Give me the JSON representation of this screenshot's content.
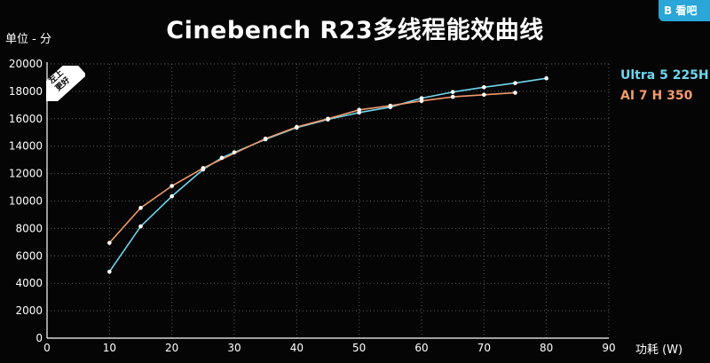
{
  "title": "Cinebench R23多线程能效曲线",
  "y_unit": "单位 - 分",
  "x_unit": "功耗 (W)",
  "badge": [
    "左上",
    "更好"
  ],
  "logo_text": "B 看吧",
  "colors": {
    "background": "#050505",
    "series_ultra": "#6fd6ef",
    "series_ai": "#f39a6b",
    "axis": "#ffffff",
    "grid": "#5a5a5a"
  },
  "chart_data": {
    "type": "line",
    "title": "Cinebench R23多线程能效曲线",
    "xlabel": "功耗 (W)",
    "ylabel": "单位 - 分",
    "xlim": [
      0,
      90
    ],
    "ylim": [
      0,
      20000
    ],
    "x_ticks": [
      "0",
      "10",
      "20",
      "30",
      "40",
      "50",
      "60",
      "70",
      "80",
      "90"
    ],
    "y_ticks": [
      "0",
      "2000",
      "4000",
      "6000",
      "8000",
      "10000",
      "12000",
      "14000",
      "16000",
      "18000",
      "20000"
    ],
    "grid": true,
    "legend_position": "right",
    "series": [
      {
        "name": "Ultra 5 225H",
        "color": "#6fd6ef",
        "x": [
          10,
          15,
          20,
          25,
          28,
          30,
          35,
          40,
          45,
          50,
          55,
          60,
          65,
          70,
          75,
          80
        ],
        "y": [
          4850,
          8150,
          10350,
          12300,
          13150,
          13550,
          14500,
          15350,
          15950,
          16450,
          16850,
          17500,
          17950,
          18300,
          18600,
          18950
        ]
      },
      {
        "name": "AI 7 H 350",
        "color": "#f39a6b",
        "x": [
          10,
          15,
          20,
          25,
          35,
          40,
          45,
          50,
          55,
          60,
          65,
          70,
          75
        ],
        "y": [
          6950,
          9500,
          11100,
          12400,
          14550,
          15400,
          16000,
          16650,
          16950,
          17300,
          17600,
          17750,
          17900
        ]
      }
    ]
  }
}
